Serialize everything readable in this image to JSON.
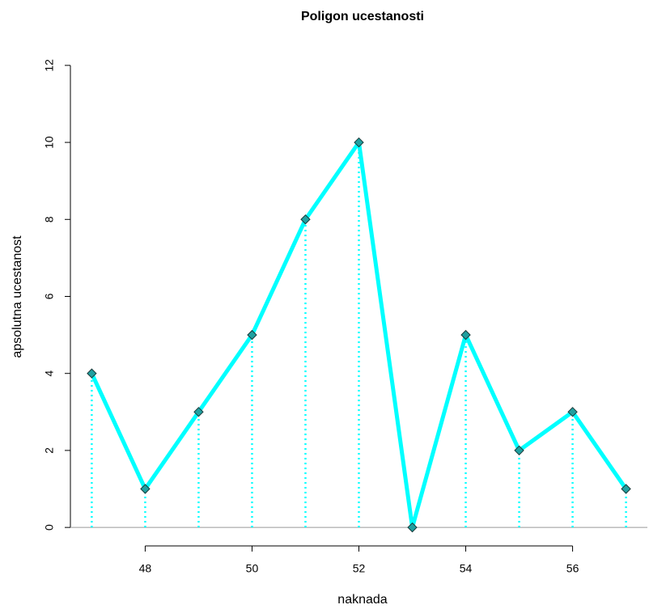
{
  "chart_data": {
    "type": "line",
    "title": "Poligon ucestanosti",
    "x_label": "naknada",
    "y_label": "apsolutna ucestanost",
    "x": [
      47,
      48,
      49,
      50,
      51,
      52,
      53,
      54,
      55,
      56,
      57
    ],
    "series": [
      {
        "color": "#00ffff",
        "marker_color": "#20a0a0",
        "values": [
          4,
          1,
          3,
          5,
          8,
          10,
          0,
          5,
          2,
          3,
          1
        ]
      }
    ],
    "xlim": [
      46.6,
      57.4
    ],
    "ylim": [
      -0.48,
      12.48
    ],
    "xticks": [
      48,
      50,
      52,
      54,
      56
    ],
    "yticks": [
      0,
      2,
      4,
      6,
      8,
      10,
      12
    ],
    "baseline_color": "#999999"
  }
}
